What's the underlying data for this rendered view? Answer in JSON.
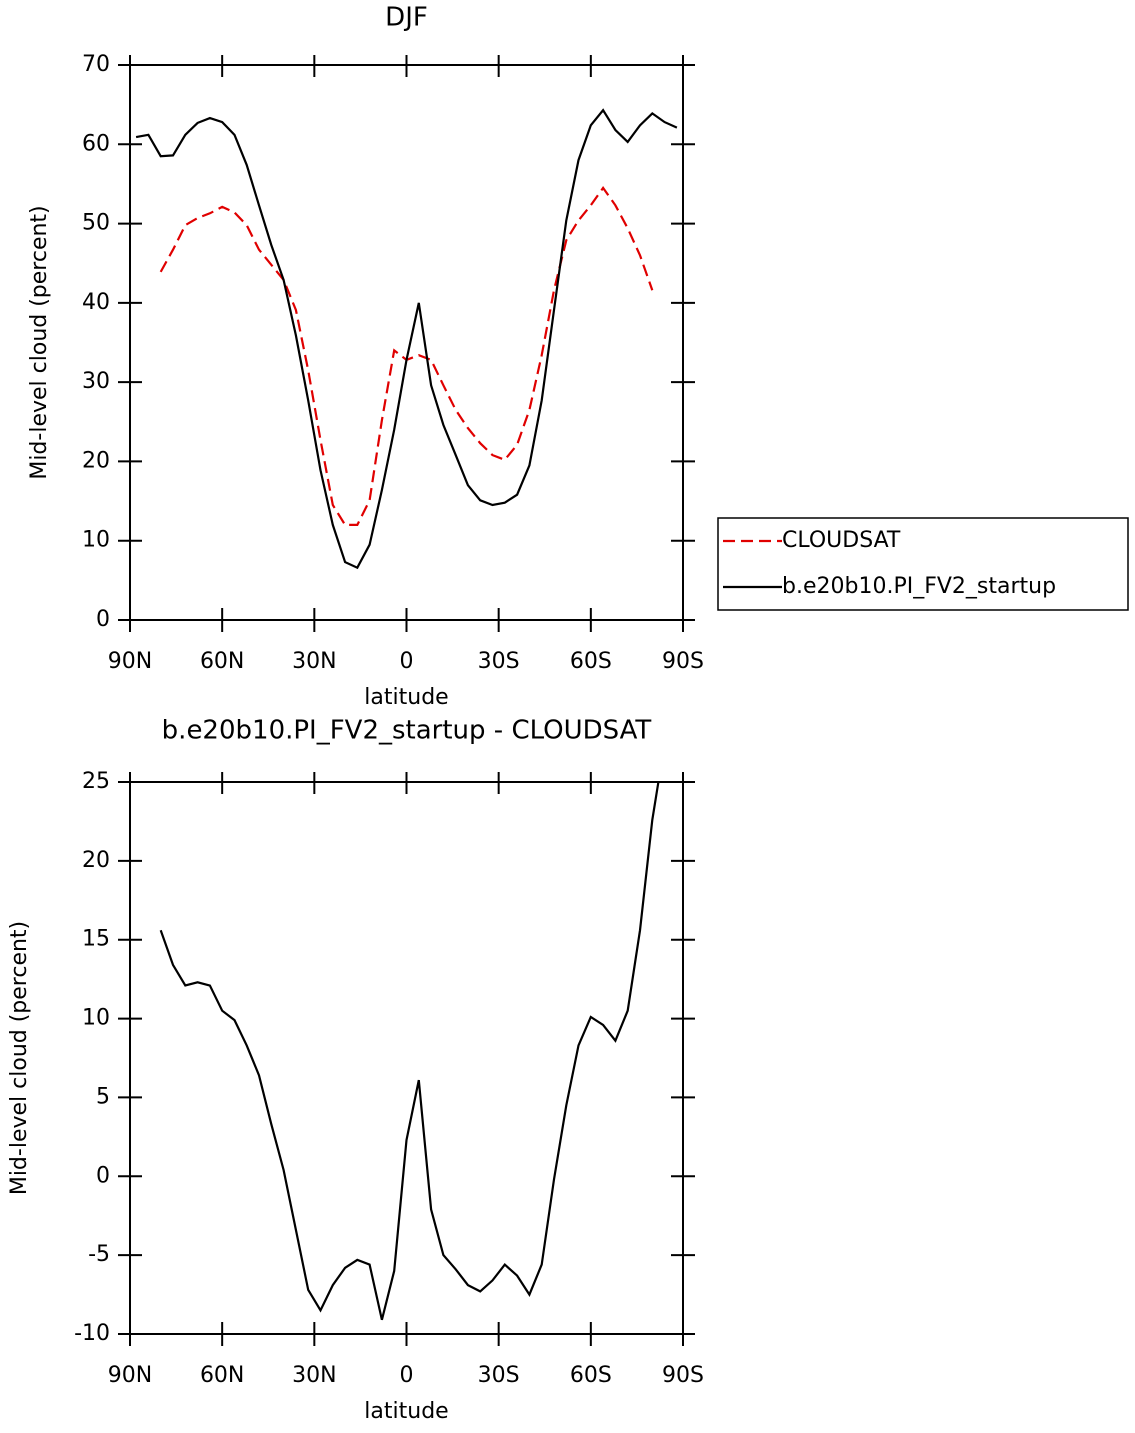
{
  "chart_data": [
    {
      "type": "line",
      "title": "DJF",
      "xlabel": "latitude",
      "ylabel": "Mid-level cloud (percent)",
      "x": [
        88,
        84,
        80,
        76,
        72,
        68,
        64,
        60,
        56,
        52,
        48,
        44,
        40,
        36,
        32,
        28,
        24,
        20,
        16,
        12,
        8,
        4,
        0,
        -4,
        -8,
        -12,
        -16,
        -20,
        -24,
        -28,
        -32,
        -36,
        -40,
        -44,
        -48,
        -52,
        -56,
        -60,
        -64,
        -68,
        -72,
        -76,
        -80,
        -84,
        -88
      ],
      "xlim": [
        90,
        -90
      ],
      "xticks": [
        {
          "value": 90,
          "label": "90N"
        },
        {
          "value": 60,
          "label": "60N"
        },
        {
          "value": 30,
          "label": "30N"
        },
        0,
        {
          "value": -30,
          "label": "30S"
        },
        {
          "value": -60,
          "label": "60S"
        },
        {
          "value": -90,
          "label": "90S"
        }
      ],
      "ylim": [
        0,
        70
      ],
      "yticks": [
        0,
        10,
        20,
        30,
        40,
        50,
        60,
        70
      ],
      "legend": "outside-right",
      "series": [
        {
          "name": "CLOUDSAT",
          "color": "#e00000",
          "line_style": "dashed",
          "values": [
            null,
            null,
            43.9,
            46.7,
            49.8,
            50.7,
            51.3,
            52.1,
            51.4,
            49.8,
            46.7,
            44.8,
            42.9,
            39.1,
            31.5,
            22.7,
            14.5,
            12.0,
            12.0,
            15.1,
            25.2,
            34.0,
            32.8,
            33.4,
            32.8,
            29.6,
            26.5,
            24.2,
            22.3,
            20.8,
            20.2,
            22.1,
            26.5,
            33.4,
            41.6,
            47.9,
            50.4,
            52.3,
            54.5,
            52.3,
            49.4,
            46.0,
            41.6,
            null,
            null
          ]
        },
        {
          "name": "b.e20b10.PI_FV2_startup",
          "color": "#000000",
          "line_style": "solid",
          "values": [
            60.9,
            61.2,
            58.5,
            58.6,
            61.2,
            62.7,
            63.3,
            62.8,
            61.2,
            57.4,
            52.3,
            47.3,
            42.9,
            35.9,
            27.7,
            18.9,
            12.0,
            7.3,
            6.6,
            9.5,
            16.4,
            24.0,
            32.8,
            40.0,
            29.6,
            24.6,
            20.8,
            17.0,
            15.1,
            14.5,
            14.8,
            15.8,
            19.5,
            27.7,
            39.1,
            50.4,
            58.0,
            62.4,
            64.3,
            61.8,
            60.3,
            62.4,
            63.9,
            62.8,
            62.1
          ]
        }
      ]
    },
    {
      "type": "line",
      "title": "b.e20b10.PI_FV2_startup - CLOUDSAT",
      "xlabel": "latitude",
      "ylabel": "Mid-level cloud (percent)",
      "x": [
        80,
        76,
        72,
        68,
        64,
        60,
        56,
        52,
        48,
        44,
        40,
        36,
        32,
        28,
        24,
        20,
        16,
        12,
        8,
        4,
        0,
        -4,
        -8,
        -12,
        -16,
        -20,
        -24,
        -28,
        -32,
        -36,
        -40,
        -44,
        -48,
        -52,
        -56,
        -60,
        -64,
        -68,
        -72,
        -76,
        -80,
        -82
      ],
      "xlim": [
        90,
        -90
      ],
      "xticks": [
        {
          "value": 90,
          "label": "90N"
        },
        {
          "value": 60,
          "label": "60N"
        },
        {
          "value": 30,
          "label": "30N"
        },
        0,
        {
          "value": -30,
          "label": "30S"
        },
        {
          "value": -60,
          "label": "60S"
        },
        {
          "value": -90,
          "label": "90S"
        }
      ],
      "ylim": [
        -10,
        25
      ],
      "yticks": [
        -10,
        -5,
        0,
        5,
        10,
        15,
        20,
        25
      ],
      "color": "#000000",
      "values": [
        15.6,
        13.4,
        12.1,
        12.3,
        12.1,
        10.5,
        9.9,
        8.3,
        6.4,
        3.3,
        0.4,
        -3.4,
        -7.2,
        -8.5,
        -6.9,
        -5.8,
        -5.3,
        -5.6,
        -9.1,
        -6.0,
        2.3,
        6.1,
        -2.1,
        -5.0,
        -5.9,
        -6.9,
        -7.3,
        -6.6,
        -5.6,
        -6.3,
        -7.5,
        -5.6,
        -0.2,
        4.5,
        8.3,
        10.1,
        9.6,
        8.6,
        10.5,
        15.6,
        22.6,
        25.0
      ]
    }
  ]
}
